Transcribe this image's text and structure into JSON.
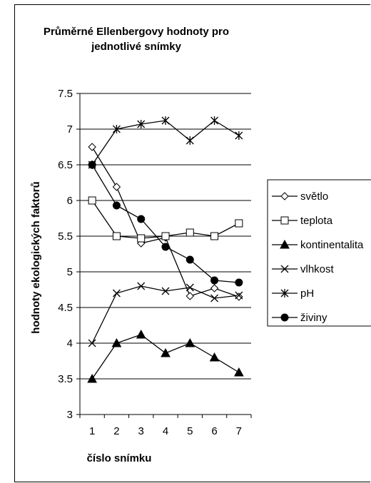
{
  "chart_data": {
    "type": "line",
    "title_line1": "Průměrné Ellenbergovy hodnoty pro",
    "title_line2": "jednotlivé snímky",
    "xlabel": "číslo snímku",
    "ylabel": "hodnoty ekologických faktorů",
    "x": [
      1,
      2,
      3,
      4,
      5,
      6,
      7
    ],
    "xticks": [
      "1",
      "2",
      "3",
      "4",
      "5",
      "6",
      "7"
    ],
    "ylim": [
      3,
      7.5
    ],
    "yticks": [
      "3",
      "3.5",
      "4",
      "4.5",
      "5",
      "5.5",
      "6",
      "6.5",
      "7",
      "7.5"
    ],
    "grid": "horizontal",
    "legend_position": "right",
    "series": [
      {
        "name": "světlo",
        "marker": "diamond-open",
        "values": [
          6.75,
          6.19,
          5.4,
          5.48,
          4.66,
          4.77,
          4.65
        ]
      },
      {
        "name": "teplota",
        "marker": "square-open",
        "values": [
          6.0,
          5.5,
          5.47,
          5.5,
          5.55,
          5.5,
          5.68
        ]
      },
      {
        "name": "kontinentalita",
        "marker": "triangle-filled",
        "values": [
          3.5,
          4.0,
          4.12,
          3.86,
          4.0,
          3.8,
          3.59
        ]
      },
      {
        "name": "vlhkost",
        "marker": "x",
        "values": [
          4.0,
          4.7,
          4.8,
          4.73,
          4.78,
          4.63,
          4.67
        ]
      },
      {
        "name": "pH",
        "marker": "asterisk",
        "values": [
          6.5,
          7.0,
          7.07,
          7.12,
          6.84,
          7.12,
          6.91
        ]
      },
      {
        "name": "živiny",
        "marker": "circle-filled",
        "values": [
          6.5,
          5.93,
          5.74,
          5.35,
          5.17,
          4.88,
          4.85
        ]
      }
    ]
  }
}
